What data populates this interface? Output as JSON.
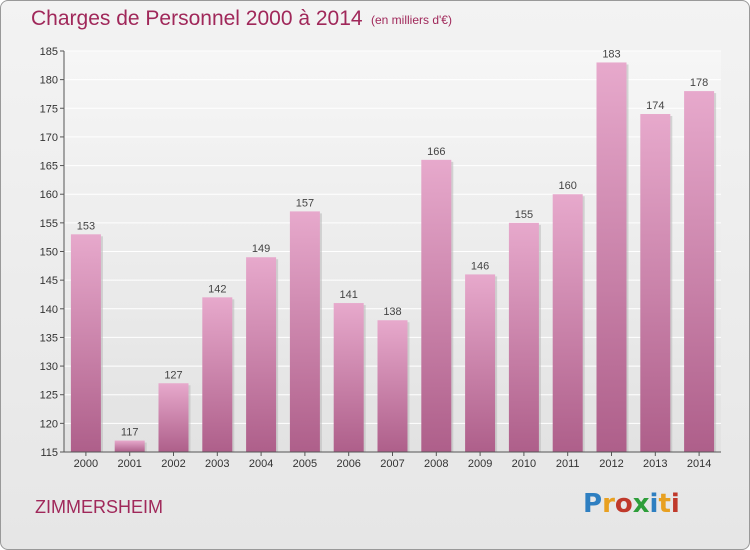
{
  "header": {
    "title": "Charges de Personnel 2000 à 2014",
    "subtitle": "(en milliers d'€)"
  },
  "footer": {
    "place": "ZIMMERSHEIM",
    "logo": [
      "P",
      "r",
      "o",
      "x",
      "i",
      "t",
      "i"
    ],
    "logo_colors": [
      "#2e7fc1",
      "#e8a020",
      "#c0392b",
      "#2e9e3a",
      "#2e7fc1",
      "#e8a020",
      "#c0392b"
    ]
  },
  "colors": {
    "title": "#a0285a",
    "bar_top": "#e7a9cc",
    "bar_bottom": "#ae5f8a"
  },
  "chart_data": {
    "type": "bar",
    "title": "Charges de Personnel 2000 à 2014",
    "categories": [
      "2000",
      "2001",
      "2002",
      "2003",
      "2004",
      "2005",
      "2006",
      "2007",
      "2008",
      "2009",
      "2010",
      "2011",
      "2012",
      "2013",
      "2014"
    ],
    "values": [
      153,
      117,
      127,
      142,
      149,
      157,
      141,
      138,
      166,
      146,
      155,
      160,
      183,
      174,
      178
    ],
    "ylim": [
      115,
      185
    ],
    "yticks": [
      115,
      120,
      125,
      130,
      135,
      140,
      145,
      150,
      155,
      160,
      165,
      170,
      175,
      180,
      185
    ],
    "grid": true,
    "xlabel": "",
    "ylabel": ""
  }
}
